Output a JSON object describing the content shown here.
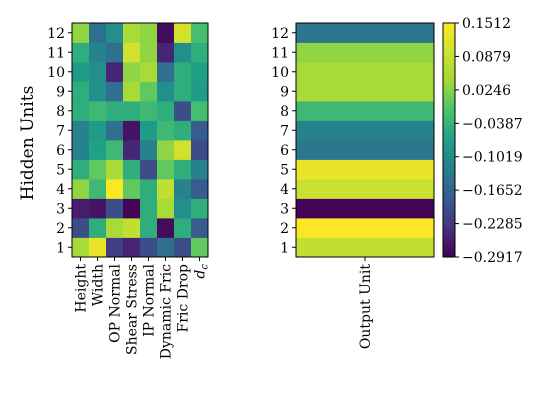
{
  "chart_data": [
    {
      "type": "heatmap",
      "ylabel": "Hidden Units",
      "xlabel": "",
      "x_categories": [
        "Height",
        "Width",
        "OP Normal",
        "Shear Stress",
        "IP Normal",
        "Dynamic Fric",
        "Fric Drop",
        "d_c"
      ],
      "x_tick_display": [
        "Height",
        "Width",
        "OP Normal",
        "Shear Stress",
        "IP Normal",
        "Dynamic Fric",
        "Fric Drop",
        "d"
      ],
      "x_tick_subscripts": [
        "",
        "",
        "",
        "",
        "",
        "",
        "",
        "c"
      ],
      "y_categories": [
        "1",
        "2",
        "3",
        "4",
        "5",
        "6",
        "7",
        "8",
        "9",
        "10",
        "11",
        "12"
      ],
      "values": [
        [
          0.05,
          0.13,
          -0.22,
          -0.25,
          -0.2,
          -0.15,
          -0.2,
          0.0
        ],
        [
          -0.2,
          -0.05,
          0.05,
          0.08,
          -0.05,
          -0.28,
          -0.05,
          -0.18
        ],
        [
          -0.26,
          -0.27,
          -0.2,
          -0.29,
          -0.05,
          0.05,
          -0.1,
          -0.05
        ],
        [
          0.03,
          -0.03,
          0.15,
          0.0,
          -0.05,
          0.08,
          -0.12,
          -0.18
        ],
        [
          -0.05,
          0.0,
          0.05,
          -0.05,
          -0.2,
          0.0,
          -0.05,
          -0.12
        ],
        [
          -0.12,
          -0.07,
          -0.03,
          -0.25,
          -0.12,
          0.03,
          0.1,
          -0.2
        ],
        [
          -0.12,
          -0.08,
          -0.15,
          -0.27,
          -0.08,
          -0.03,
          -0.05,
          -0.18
        ],
        [
          -0.05,
          -0.03,
          -0.05,
          -0.05,
          -0.03,
          -0.05,
          -0.2,
          -0.02
        ],
        [
          -0.05,
          -0.1,
          -0.15,
          0.05,
          0.0,
          -0.1,
          -0.05,
          -0.08
        ],
        [
          -0.08,
          -0.1,
          -0.25,
          0.03,
          0.05,
          -0.15,
          -0.05,
          -0.07
        ],
        [
          -0.05,
          -0.12,
          -0.15,
          0.1,
          0.03,
          -0.25,
          -0.1,
          -0.05
        ],
        [
          0.03,
          -0.15,
          -0.1,
          0.05,
          0.03,
          -0.28,
          0.1,
          -0.02
        ]
      ]
    },
    {
      "type": "heatmap",
      "xlabel": "",
      "x_categories": [
        "Output Unit"
      ],
      "y_categories": [
        "1",
        "2",
        "3",
        "4",
        "5",
        "6",
        "7",
        "8",
        "9",
        "10",
        "11",
        "12"
      ],
      "values": [
        [
          0.08
        ],
        [
          0.15
        ],
        [
          -0.29
        ],
        [
          0.09
        ],
        [
          0.13
        ],
        [
          -0.14
        ],
        [
          -0.12
        ],
        [
          -0.03
        ],
        [
          0.05
        ],
        [
          0.05
        ],
        [
          0.03
        ],
        [
          -0.14
        ]
      ]
    }
  ],
  "colorbar": {
    "colormap": "viridis",
    "range": [
      -0.2917,
      0.1512
    ],
    "ticks": [
      0.1512,
      0.0879,
      0.0246,
      -0.0387,
      -0.1019,
      -0.1652,
      -0.2285,
      -0.2917
    ],
    "tick_labels": [
      "0.1512",
      "0.0879",
      "0.0246",
      "−0.0387",
      "−0.1019",
      "−0.1652",
      "−0.2285",
      "−0.2917"
    ]
  }
}
